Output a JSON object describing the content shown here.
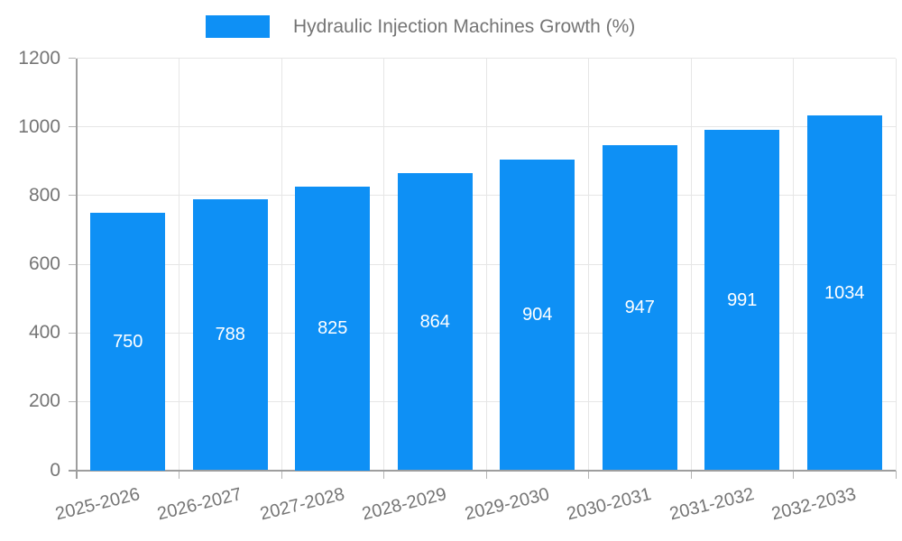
{
  "legend": {
    "swatch_color": "#0e90f5",
    "label": "Hydraulic Injection Machines Growth (%)"
  },
  "colors": {
    "bar": "#0e90f5",
    "axis": "#9e9e9e",
    "grid": "#e6e6e6",
    "tick": "#b5b5b5",
    "text": "#757575",
    "value_label": "#ffffff",
    "background": "#ffffff"
  },
  "chart_data": {
    "type": "bar",
    "title": "Hydraulic Injection Machines Growth (%)",
    "categories": [
      "2025-2026",
      "2026-2027",
      "2027-2028",
      "2028-2029",
      "2029-2030",
      "2030-2031",
      "2031-2032",
      "2032-2033"
    ],
    "values": [
      750,
      788,
      825,
      864,
      904,
      947,
      991,
      1034
    ],
    "xlabel": "",
    "ylabel": "",
    "ylim": [
      0,
      1200
    ],
    "yticks": [
      0,
      200,
      400,
      600,
      800,
      1000,
      1200
    ],
    "grid": true,
    "legend_position": "top",
    "value_label_position": "inside-center"
  }
}
